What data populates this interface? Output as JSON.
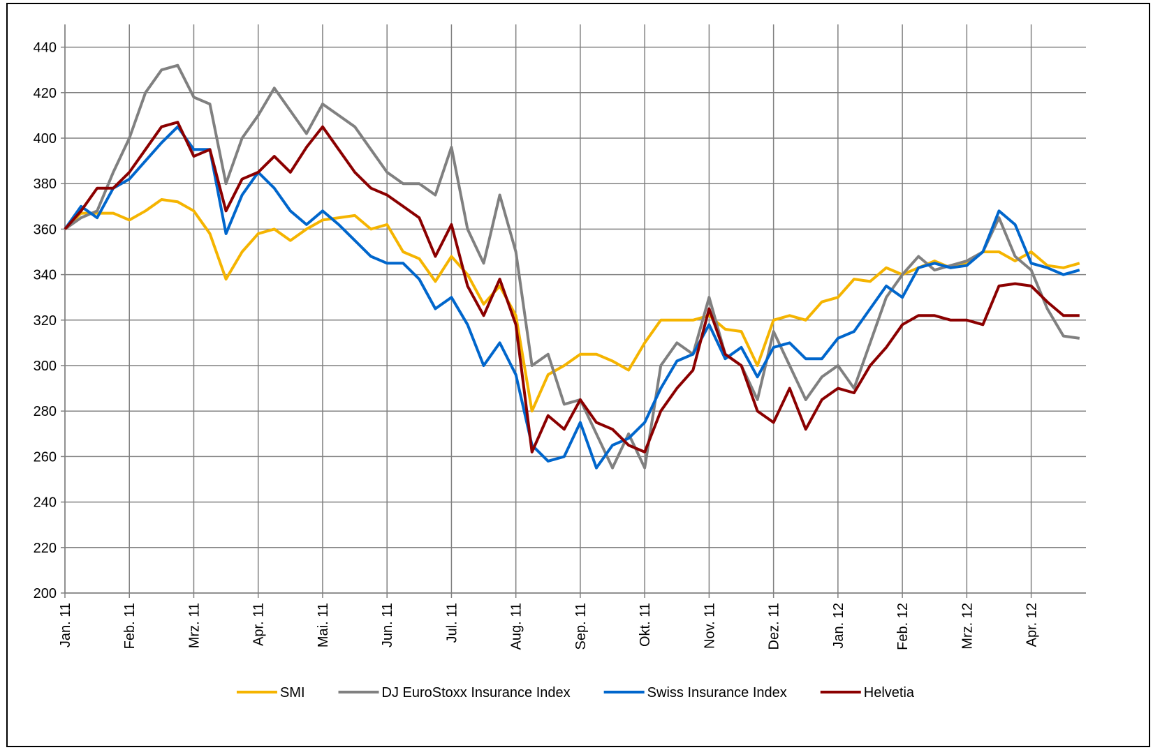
{
  "chart_data": {
    "type": "line",
    "x": [
      0,
      0.25,
      0.5,
      0.75,
      1,
      1.25,
      1.5,
      1.75,
      2,
      2.25,
      2.5,
      2.75,
      3,
      3.25,
      3.5,
      3.75,
      4,
      4.25,
      4.5,
      4.75,
      5,
      5.25,
      5.5,
      5.75,
      6,
      6.25,
      6.5,
      6.75,
      7,
      7.25,
      7.5,
      7.75,
      8,
      8.25,
      8.5,
      8.75,
      9,
      9.25,
      9.5,
      9.75,
      10,
      10.25,
      10.5,
      10.75,
      11,
      11.25,
      11.5,
      11.75,
      12,
      12.25,
      12.5,
      12.75,
      13,
      13.25,
      13.5,
      13.75,
      14,
      14.25,
      14.5,
      14.75,
      15,
      15.25,
      15.5,
      15.75
    ],
    "series": [
      {
        "name": "SMI",
        "color": "#f5b400",
        "values": [
          360,
          367,
          367,
          367,
          364,
          368,
          373,
          372,
          368,
          358,
          338,
          350,
          358,
          360,
          355,
          360,
          364,
          365,
          366,
          360,
          362,
          350,
          347,
          337,
          348,
          340,
          327,
          335,
          322,
          280,
          296,
          300,
          305,
          305,
          302,
          298,
          310,
          320,
          320,
          320,
          322,
          316,
          315,
          300,
          320,
          322,
          320,
          328,
          330,
          338,
          337,
          343,
          340,
          343,
          346,
          343,
          345,
          350,
          350,
          346,
          350,
          344,
          343,
          345
        ]
      },
      {
        "name": "DJ EuroStoxx Insurance Index",
        "color": "#808080",
        "values": [
          360,
          365,
          368,
          385,
          400,
          420,
          430,
          432,
          418,
          415,
          380,
          400,
          410,
          422,
          412,
          402,
          415,
          410,
          405,
          395,
          385,
          380,
          380,
          375,
          396,
          360,
          345,
          375,
          350,
          300,
          305,
          283,
          285,
          270,
          255,
          270,
          255,
          300,
          310,
          305,
          330,
          305,
          300,
          285,
          315,
          300,
          285,
          295,
          300,
          290,
          310,
          330,
          340,
          348,
          342,
          344,
          346,
          350,
          365,
          348,
          342,
          325,
          313,
          312
        ]
      },
      {
        "name": "Swiss Insurance Index",
        "color": "#0066cc",
        "values": [
          360,
          370,
          365,
          378,
          382,
          390,
          398,
          405,
          395,
          395,
          358,
          375,
          385,
          378,
          368,
          362,
          368,
          362,
          355,
          348,
          345,
          345,
          338,
          325,
          330,
          318,
          300,
          310,
          296,
          265,
          258,
          260,
          275,
          255,
          265,
          268,
          275,
          290,
          302,
          305,
          318,
          303,
          308,
          295,
          308,
          310,
          303,
          303,
          312,
          315,
          325,
          335,
          330,
          343,
          345,
          343,
          344,
          350,
          368,
          362,
          345,
          343,
          340,
          342
        ]
      },
      {
        "name": "Helvetia",
        "color": "#8b0000",
        "values": [
          360,
          368,
          378,
          378,
          385,
          395,
          405,
          407,
          392,
          395,
          368,
          382,
          385,
          392,
          385,
          396,
          405,
          395,
          385,
          378,
          375,
          370,
          365,
          348,
          362,
          335,
          322,
          338,
          318,
          262,
          278,
          272,
          285,
          275,
          272,
          265,
          262,
          280,
          290,
          298,
          325,
          305,
          300,
          280,
          275,
          290,
          272,
          285,
          290,
          288,
          300,
          308,
          318,
          322,
          322,
          320,
          320,
          318,
          335,
          336,
          335,
          328,
          322,
          322
        ]
      }
    ],
    "xlim": [
      0,
      15.85
    ],
    "xticks": [
      {
        "value": 0,
        "label": "Jan. 11"
      },
      {
        "value": 1,
        "label": "Feb. 11"
      },
      {
        "value": 2,
        "label": "Mrz. 11"
      },
      {
        "value": 3,
        "label": "Apr. 11"
      },
      {
        "value": 4,
        "label": "Mai. 11"
      },
      {
        "value": 5,
        "label": "Jun. 11"
      },
      {
        "value": 6,
        "label": "Jul. 11"
      },
      {
        "value": 7,
        "label": "Aug. 11"
      },
      {
        "value": 8,
        "label": "Sep. 11"
      },
      {
        "value": 9,
        "label": "Okt. 11"
      },
      {
        "value": 10,
        "label": "Nov. 11"
      },
      {
        "value": 11,
        "label": "Dez. 11"
      },
      {
        "value": 12,
        "label": "Jan. 12"
      },
      {
        "value": 13,
        "label": "Feb. 12"
      },
      {
        "value": 14,
        "label": "Mrz. 12"
      },
      {
        "value": 15,
        "label": "Apr. 12"
      }
    ],
    "ylim": [
      200,
      450
    ],
    "yticks": [
      200,
      220,
      240,
      260,
      280,
      300,
      320,
      340,
      360,
      380,
      400,
      420,
      440
    ],
    "grid": true,
    "legend": "bottom"
  }
}
